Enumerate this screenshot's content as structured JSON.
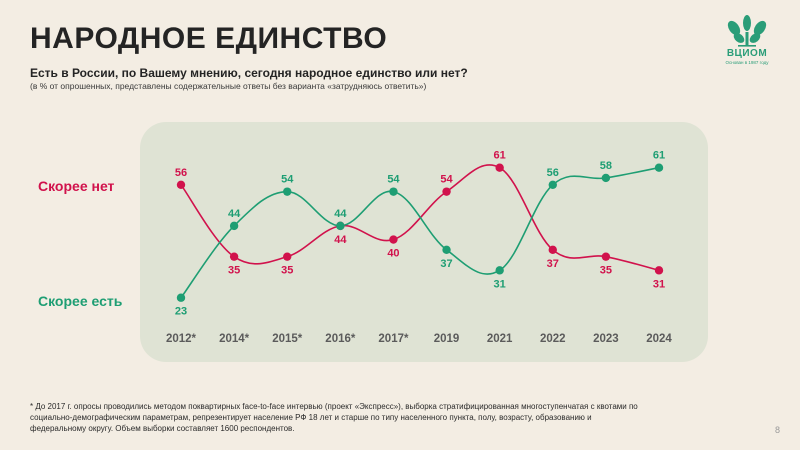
{
  "header": {
    "title": "НАРОДНОЕ ЕДИНСТВО",
    "question": "Есть в России, по Вашему мнению, сегодня народное единство или нет?",
    "note": "(в % от опрошенных, представлены содержательные ответы без варианта «затрудняюсь ответить»)"
  },
  "logo": {
    "name": "ВЦИОМ",
    "tagline": "Основан в 1987 году",
    "color": "#2a9d78"
  },
  "chart_data": {
    "type": "line",
    "categories": [
      "2012*",
      "2014*",
      "2015*",
      "2016*",
      "2017*",
      "2019",
      "2021",
      "2022",
      "2023",
      "2024"
    ],
    "series": [
      {
        "name": "Скорее нет",
        "color": "#d1124c",
        "values": [
          56,
          35,
          35,
          44,
          40,
          54,
          61,
          37,
          35,
          31
        ]
      },
      {
        "name": "Скорее есть",
        "color": "#1e9e73",
        "values": [
          23,
          44,
          54,
          44,
          54,
          37,
          31,
          56,
          58,
          61
        ]
      }
    ],
    "ylim": [
      20,
      65
    ],
    "grid": false,
    "legend": "left"
  },
  "footnote": "* До 2017 г. опросы проводились методом поквартирных face-to-face интервью (проект «Экспресс»), выборка стратифицированная многоступенчатая с квотами по социально-демографическим параметрам, репрезентирует население РФ 18 лет и старше по типу населенного пункта, полу, возрасту, образованию и федеральному округу. Объем выборки составляет 1600 респондентов.",
  "page_number": "8"
}
